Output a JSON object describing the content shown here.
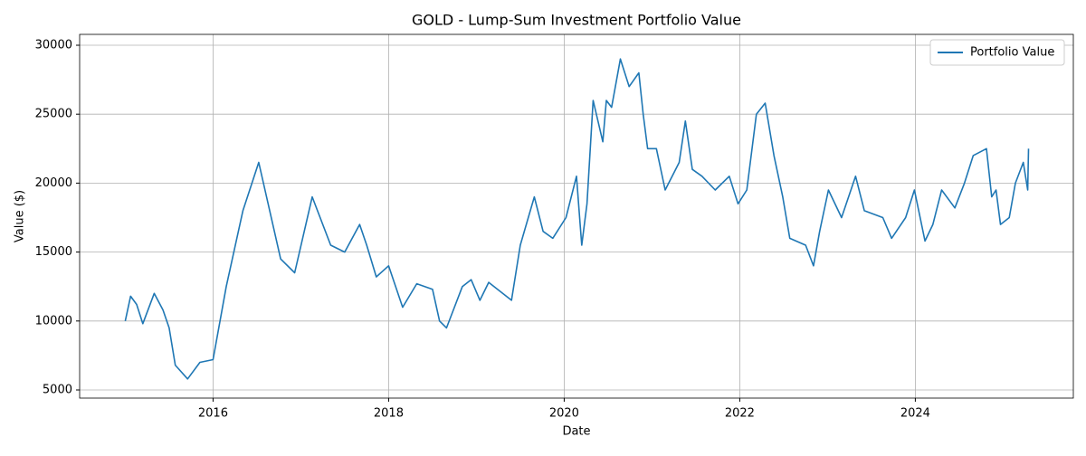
{
  "chart_data": {
    "type": "line",
    "title": "GOLD - Lump-Sum Investment Portfolio Value",
    "x_label": "Date",
    "y_label": "Value ($)",
    "x": [
      2015.0,
      2015.06,
      2015.13,
      2015.2,
      2015.33,
      2015.43,
      2015.5,
      2015.57,
      2015.71,
      2015.85,
      2016.0,
      2016.15,
      2016.34,
      2016.52,
      2016.77,
      2016.93,
      2017.13,
      2017.34,
      2017.5,
      2017.67,
      2017.75,
      2017.86,
      2018.0,
      2018.16,
      2018.32,
      2018.5,
      2018.58,
      2018.66,
      2018.84,
      2018.94,
      2019.04,
      2019.14,
      2019.4,
      2019.5,
      2019.66,
      2019.76,
      2019.87,
      2020.02,
      2020.14,
      2020.2,
      2020.26,
      2020.33,
      2020.44,
      2020.48,
      2020.54,
      2020.64,
      2020.74,
      2020.85,
      2020.9,
      2020.95,
      2021.05,
      2021.15,
      2021.31,
      2021.38,
      2021.46,
      2021.57,
      2021.72,
      2021.88,
      2021.98,
      2022.08,
      2022.19,
      2022.29,
      2022.39,
      2022.49,
      2022.57,
      2022.75,
      2022.84,
      2022.91,
      2023.01,
      2023.16,
      2023.32,
      2023.42,
      2023.63,
      2023.73,
      2023.89,
      2023.99,
      2024.11,
      2024.2,
      2024.3,
      2024.45,
      2024.56,
      2024.66,
      2024.81,
      2024.87,
      2024.92,
      2024.97,
      2025.07,
      2025.14,
      2025.23,
      2025.28,
      2025.29
    ],
    "series": [
      {
        "name": "Portfolio Value",
        "color": "#1f77b4",
        "values": [
          10000,
          11800,
          11200,
          9800,
          12000,
          10800,
          9500,
          6800,
          5800,
          7000,
          7200,
          12500,
          18000,
          21500,
          14500,
          13500,
          19000,
          15500,
          15000,
          17000,
          15500,
          13200,
          14000,
          11000,
          12700,
          12300,
          10000,
          9500,
          12500,
          13000,
          11500,
          12800,
          11500,
          15500,
          19000,
          16500,
          16000,
          17500,
          20500,
          15500,
          18500,
          26000,
          23000,
          26000,
          25500,
          29000,
          27000,
          28000,
          25000,
          22500,
          22500,
          19500,
          21500,
          24500,
          21000,
          20500,
          19500,
          20500,
          18500,
          19500,
          25000,
          25800,
          22000,
          19000,
          16000,
          15500,
          14000,
          16500,
          19500,
          17500,
          20500,
          18000,
          17500,
          16000,
          17500,
          19500,
          15800,
          17000,
          19500,
          18200,
          20000,
          22000,
          22500,
          19000,
          19500,
          17000,
          17500,
          20000,
          21500,
          19500,
          22500
        ]
      }
    ],
    "xlim": [
      2014.48,
      2025.8
    ],
    "xticks": [
      2016,
      2018,
      2020,
      2022,
      2024
    ],
    "ylim": [
      4409,
      30787
    ],
    "yticks": [
      5000,
      10000,
      15000,
      20000,
      25000,
      30000
    ],
    "grid": true,
    "legend": "upper right"
  }
}
